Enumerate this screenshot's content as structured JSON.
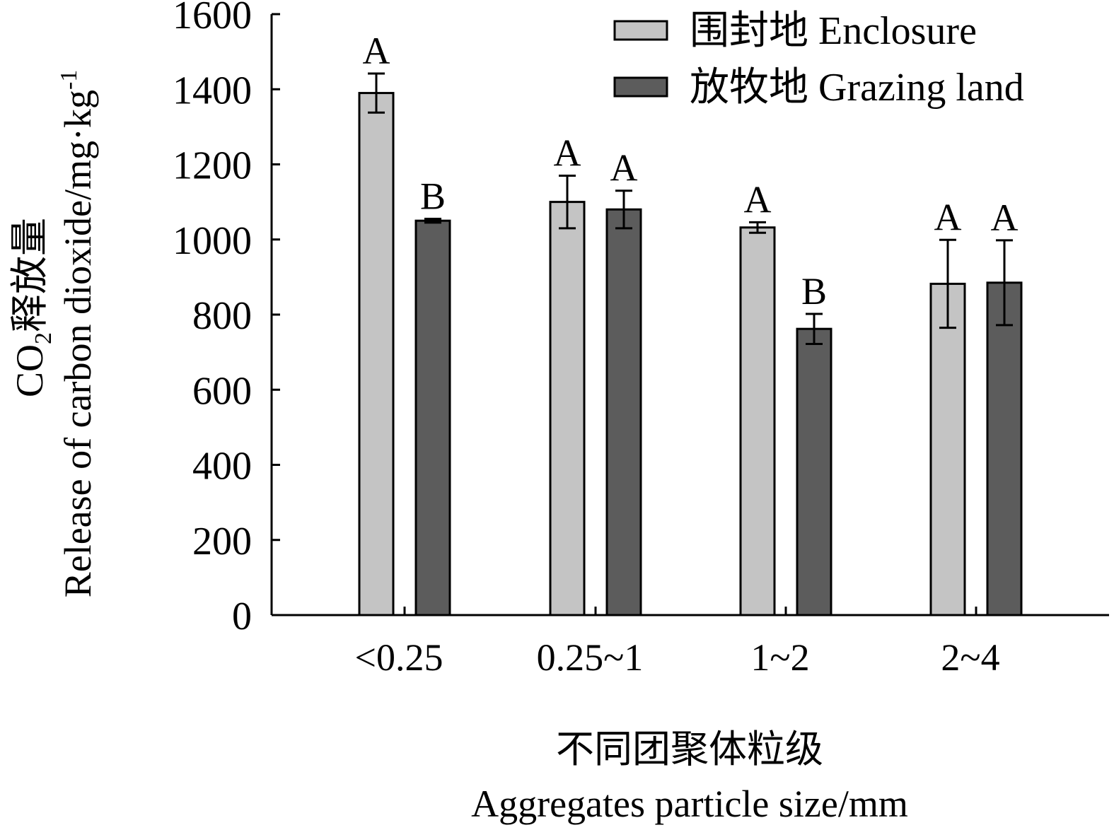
{
  "chart_data": {
    "type": "bar",
    "title": "",
    "categories": [
      "<0.25",
      "0.25~1",
      "1~2",
      "2~4"
    ],
    "series": [
      {
        "name": "围封地 Enclosure",
        "color": "#c4c4c4",
        "values": [
          1390,
          1100,
          1032,
          882
        ],
        "errors": [
          52,
          70,
          14,
          117
        ],
        "letters": [
          "A",
          "A",
          "A",
          "A"
        ]
      },
      {
        "name": "放牧地 Grazing land",
        "color": "#5c5c5c",
        "values": [
          1050,
          1080,
          762,
          885
        ],
        "errors": [
          5,
          50,
          40,
          113
        ],
        "letters": [
          "B",
          "A",
          "B",
          "A"
        ]
      }
    ],
    "ylim": [
      0,
      1600
    ],
    "yticks": [
      0,
      200,
      400,
      600,
      800,
      1000,
      1200,
      1400,
      1600
    ],
    "ylabel_cn": "CO",
    "ylabel_cn_sub": "2",
    "ylabel_cn_rest": "释放量",
    "ylabel_en": "Release of carbon dioxide/mg·kg",
    "ylabel_en_sup": "-1",
    "xlabel_cn": "不同团聚体粒级",
    "xlabel_en": "Aggregates particle size/mm",
    "legend_position": "top-right",
    "grid": false
  }
}
